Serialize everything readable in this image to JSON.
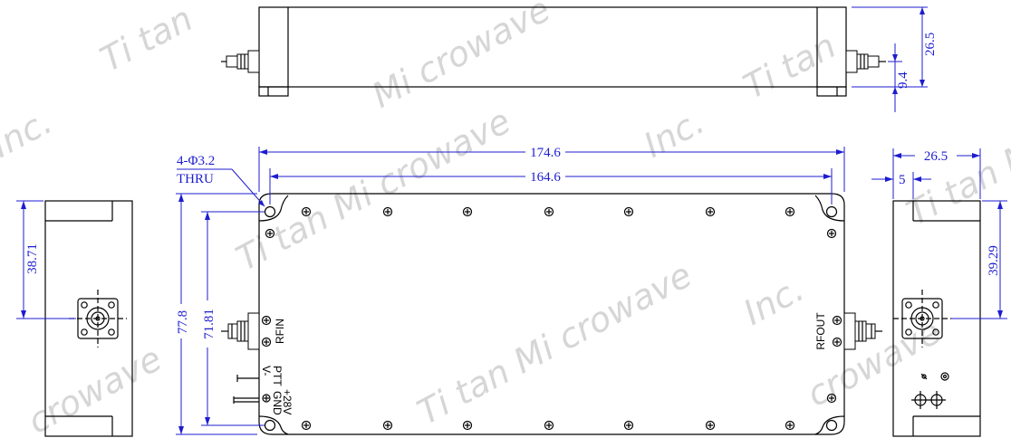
{
  "watermark": "Titan Microwave Inc.",
  "watermark_fragments": {
    "top_left_tan": "Ti tan",
    "top_center": "Mi crowave",
    "top_right": "Ti tan",
    "left_inc": "Inc.",
    "mid_left": "Ti tan Mi crowave",
    "mid_right": "Inc.",
    "right_edge": "Ti tan M",
    "center": "Ti tan Mi crowave",
    "bottom_left": "crowave",
    "bottom_right": "crowave",
    "right_mid": "Inc."
  },
  "dimensions": {
    "overall_length": "174.6",
    "hole_spacing_x": "164.6",
    "overall_width": "77.8",
    "hole_spacing_y": "71.81",
    "height": "26.5",
    "connector_height": "9.4",
    "left_connector_offset": "38.71",
    "right_connector_offset": "39.29",
    "side_height": "26.5",
    "side_offset": "5",
    "holes": "4-Φ3.2",
    "holes_thru": "THRU"
  },
  "labels": {
    "rf_in": "RFIN",
    "rf_out": "RFOUT",
    "ptt": "PTT",
    "vminus": "V-",
    "gnd": "GND",
    "plus28v": "+28V"
  }
}
